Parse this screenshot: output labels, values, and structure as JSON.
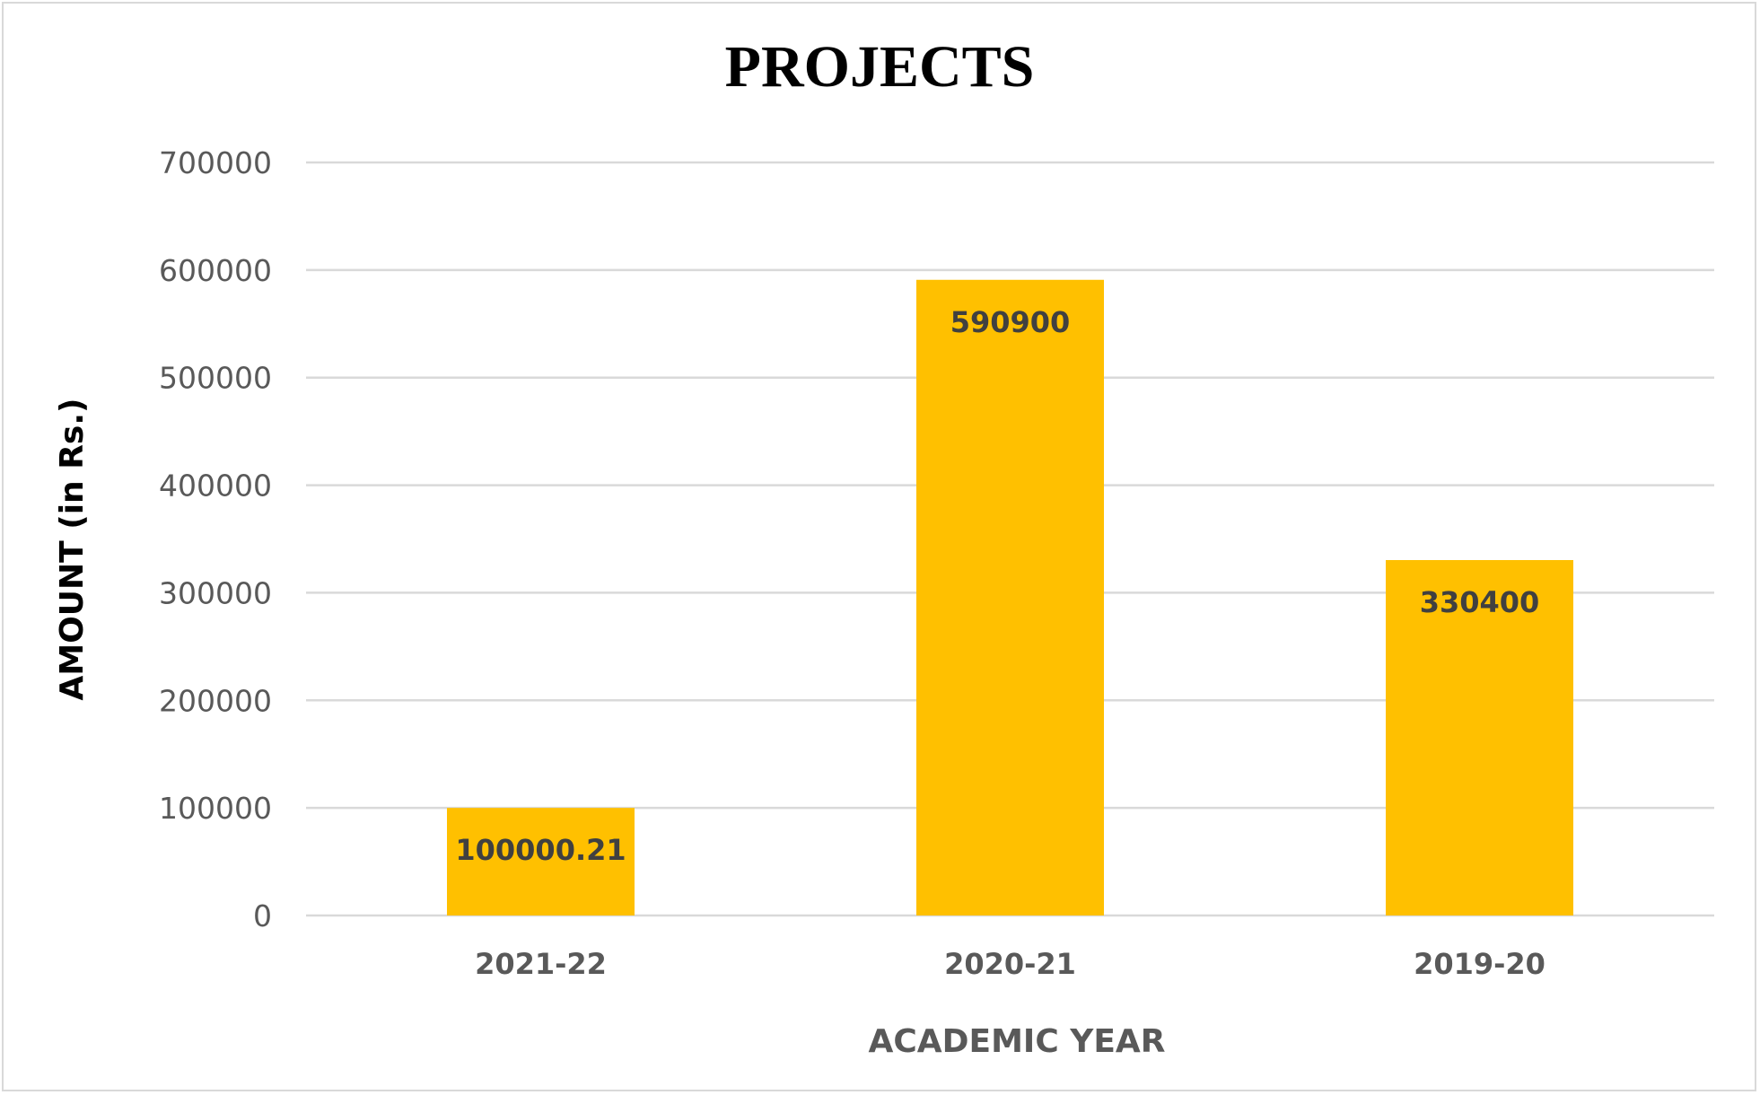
{
  "chart_data": {
    "type": "bar",
    "title": "PROJECTS",
    "xlabel": "ACADEMIC YEAR",
    "ylabel": "AMOUNT (in Rs.)",
    "categories": [
      "2021-22",
      "2020-21",
      "2019-20"
    ],
    "values": [
      100000.21,
      590900,
      330400
    ],
    "data_labels": [
      "100000.21",
      "590900",
      "330400"
    ],
    "ylim": [
      0,
      700000
    ],
    "yticks": [
      "0",
      "100000",
      "200000",
      "300000",
      "400000",
      "500000",
      "600000",
      "700000"
    ],
    "grid": true,
    "legend": "none",
    "bar_color": "#FFC000",
    "grid_color": "#D9D9D9"
  }
}
